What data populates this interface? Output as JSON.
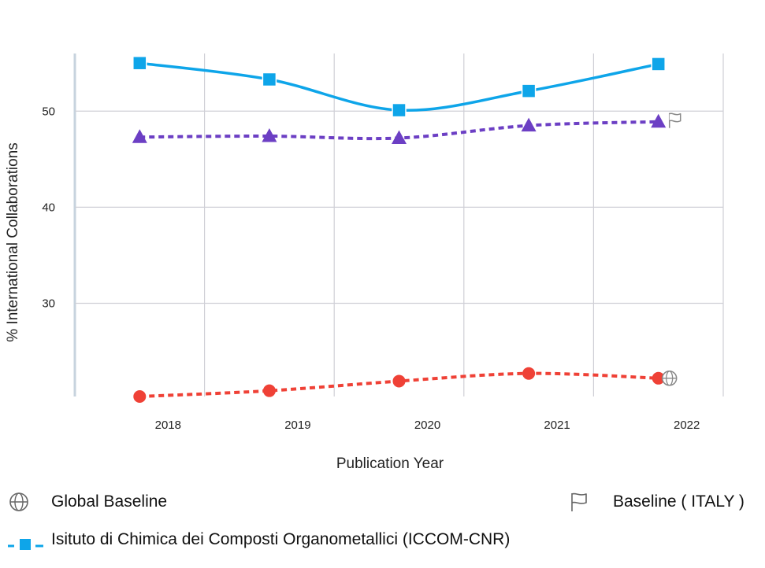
{
  "chart_data": {
    "type": "line",
    "x": [
      2018,
      2019,
      2020,
      2021,
      2022
    ],
    "x_tick_labels": [
      "2018",
      "2019",
      "2020",
      "2021",
      "2022"
    ],
    "xlabel": "Publication Year",
    "ylabel": "% International Collaborations",
    "ylim": [
      20.3,
      56
    ],
    "y_ticks": [
      30,
      40,
      50
    ],
    "y_tick_labels": [
      "30",
      "40",
      "50"
    ],
    "grid": true,
    "legend_position": "bottom",
    "series": [
      {
        "name": "Isituto di Chimica dei Composti Organometallici (ICCOM-CNR)",
        "values": [
          55.0,
          53.3,
          50.1,
          52.1,
          54.9
        ],
        "color": "#0ea5e9",
        "marker": "square",
        "line_style": "solid"
      },
      {
        "name": "Baseline ( ITALY )",
        "values": [
          47.3,
          47.4,
          47.2,
          48.5,
          48.9
        ],
        "color": "#6c3fc4",
        "marker": "triangle",
        "line_style": "dotted"
      },
      {
        "name": "Global Baseline",
        "values": [
          20.3,
          20.9,
          21.9,
          22.7,
          22.2
        ],
        "color": "#ef4136",
        "marker": "circle",
        "line_style": "dotted"
      }
    ]
  },
  "legend": {
    "global_label": "Global Baseline",
    "global_icon": "globe-icon",
    "italy_label": "Baseline ( ITALY )",
    "italy_icon": "flag-icon",
    "institute_label": "Isituto di Chimica dei Composti Organometallici (ICCOM-CNR)",
    "institute_icon": "dashed-square-marker-icon"
  }
}
